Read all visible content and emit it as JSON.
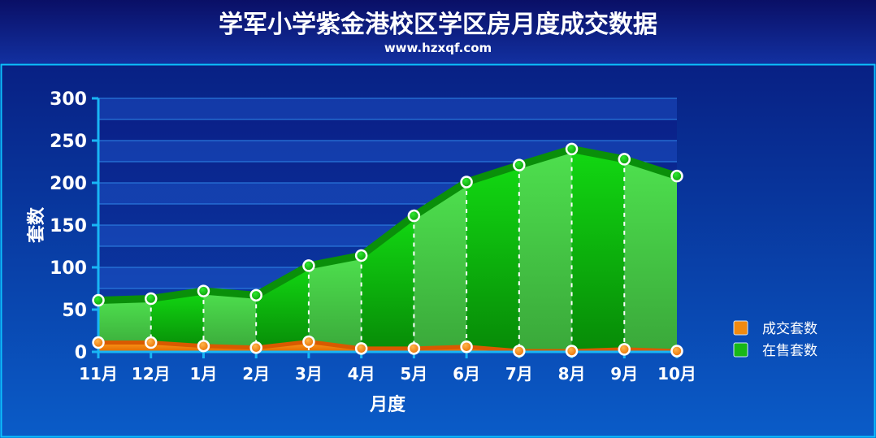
{
  "chart_data": {
    "type": "area",
    "title": "学军小学紫金港校区学区房月度成交数据",
    "subtitle": "www.hzxqf.com",
    "xlabel": "月度",
    "ylabel": "套数",
    "ylim": [
      0,
      300
    ],
    "yticks": [
      0,
      50,
      100,
      150,
      200,
      250,
      300
    ],
    "categories": [
      "11月",
      "12月",
      "1月",
      "2月",
      "3月",
      "4月",
      "5月",
      "6月",
      "7月",
      "8月",
      "9月",
      "10月"
    ],
    "legend_position": "right",
    "series": [
      {
        "name": "成交套数",
        "color": "#f08a10",
        "values": [
          11,
          11,
          7,
          5,
          12,
          4,
          4,
          6,
          1,
          1,
          3,
          1
        ]
      },
      {
        "name": "在售套数",
        "color": "#18b818",
        "values": [
          61,
          63,
          72,
          67,
          102,
          114,
          161,
          201,
          221,
          240,
          228,
          208
        ]
      }
    ]
  }
}
